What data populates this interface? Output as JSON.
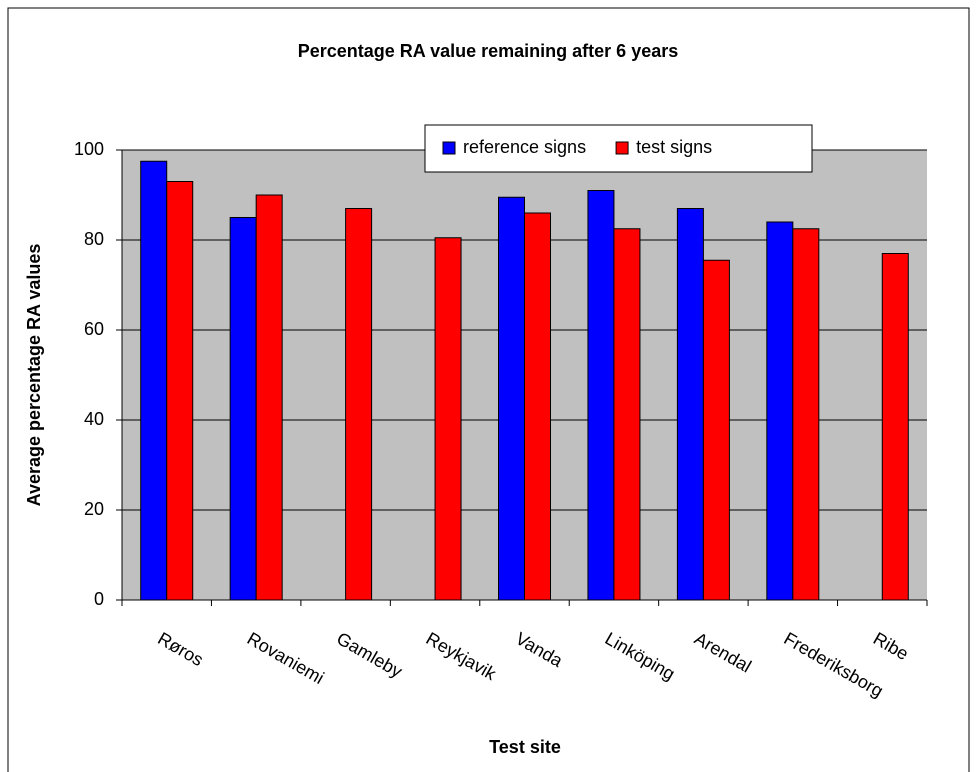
{
  "chart_data": {
    "type": "bar",
    "title": "Percentage RA value remaining after 6 years",
    "x_label": "Test site",
    "y_label": "Average percentage RA values",
    "categories": [
      "Røros",
      "Rovaniemi",
      "Gamleby",
      "Reykjavik",
      "Vanda",
      "Linköping",
      "Arendal",
      "Frederiksborg",
      "Ribe"
    ],
    "series": [
      {
        "name": "reference signs",
        "color": "#0000ff",
        "values": [
          97.5,
          85,
          null,
          null,
          89.5,
          91,
          87,
          84,
          null
        ]
      },
      {
        "name": "test signs",
        "color": "#ff0000",
        "values": [
          93,
          90,
          87,
          80.5,
          86,
          82.5,
          75.5,
          82.5,
          77
        ]
      }
    ],
    "ylim": [
      0,
      100
    ],
    "yticks": [
      0,
      20,
      40,
      60,
      80,
      100
    ],
    "grid": true,
    "legend": "top-right"
  }
}
